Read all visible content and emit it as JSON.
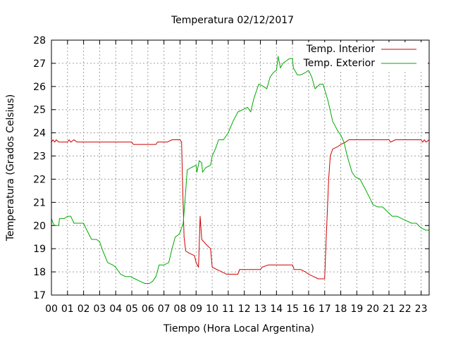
{
  "chart_data": {
    "type": "line",
    "title": "Temperatura 02/12/2017",
    "xlabel": "Tiempo (Hora Local Argentina)",
    "ylabel": "Temperatura (Grados Celsius)",
    "xlim": [
      0,
      23.5
    ],
    "ylim": [
      17,
      28
    ],
    "x_ticks": [
      {
        "value": 0,
        "label": "00"
      },
      {
        "value": 1,
        "label": "01"
      },
      {
        "value": 2,
        "label": "02"
      },
      {
        "value": 3,
        "label": "03"
      },
      {
        "value": 4,
        "label": "04"
      },
      {
        "value": 5,
        "label": "05"
      },
      {
        "value": 6,
        "label": "06"
      },
      {
        "value": 7,
        "label": "07"
      },
      {
        "value": 8,
        "label": "08"
      },
      {
        "value": 9,
        "label": "09"
      },
      {
        "value": 10,
        "label": "10"
      },
      {
        "value": 11,
        "label": "11"
      },
      {
        "value": 12,
        "label": "12"
      },
      {
        "value": 13,
        "label": "13"
      },
      {
        "value": 14,
        "label": "14"
      },
      {
        "value": 15,
        "label": "15"
      },
      {
        "value": 16,
        "label": "16"
      },
      {
        "value": 17,
        "label": "17"
      },
      {
        "value": 18,
        "label": "18"
      },
      {
        "value": 19,
        "label": "19"
      },
      {
        "value": 20,
        "label": "20"
      },
      {
        "value": 21,
        "label": "21"
      },
      {
        "value": 22,
        "label": "22"
      },
      {
        "value": 23,
        "label": "23"
      }
    ],
    "y_ticks": [
      {
        "value": 17,
        "label": "17"
      },
      {
        "value": 18,
        "label": "18"
      },
      {
        "value": 19,
        "label": "19"
      },
      {
        "value": 20,
        "label": "20"
      },
      {
        "value": 21,
        "label": "21"
      },
      {
        "value": 22,
        "label": "22"
      },
      {
        "value": 23,
        "label": "23"
      },
      {
        "value": 24,
        "label": "24"
      },
      {
        "value": 25,
        "label": "25"
      },
      {
        "value": 26,
        "label": "26"
      },
      {
        "value": 27,
        "label": "27"
      },
      {
        "value": 28,
        "label": "28"
      }
    ],
    "grid": true,
    "legend_position": "top-right",
    "series": [
      {
        "name": "Temp. Interior",
        "color": "#cc0000",
        "points": [
          [
            0,
            23.6
          ],
          [
            0.1,
            23.7
          ],
          [
            0.2,
            23.6
          ],
          [
            0.3,
            23.7
          ],
          [
            0.45,
            23.6
          ],
          [
            1.0,
            23.6
          ],
          [
            1.1,
            23.7
          ],
          [
            1.2,
            23.6
          ],
          [
            1.4,
            23.7
          ],
          [
            1.6,
            23.6
          ],
          [
            2.5,
            23.6
          ],
          [
            3.5,
            23.6
          ],
          [
            4.5,
            23.6
          ],
          [
            5.0,
            23.6
          ],
          [
            5.1,
            23.5
          ],
          [
            6.0,
            23.5
          ],
          [
            6.5,
            23.5
          ],
          [
            6.6,
            23.6
          ],
          [
            7.2,
            23.6
          ],
          [
            7.5,
            23.7
          ],
          [
            8.0,
            23.7
          ],
          [
            8.1,
            23.6
          ],
          [
            8.15,
            22.0
          ],
          [
            8.25,
            19.5
          ],
          [
            8.35,
            18.9
          ],
          [
            8.6,
            18.8
          ],
          [
            8.9,
            18.7
          ],
          [
            9.0,
            18.4
          ],
          [
            9.15,
            18.2
          ],
          [
            9.25,
            20.4
          ],
          [
            9.35,
            19.4
          ],
          [
            9.6,
            19.2
          ],
          [
            9.9,
            19.0
          ],
          [
            10.0,
            18.2
          ],
          [
            10.3,
            18.1
          ],
          [
            10.6,
            18.0
          ],
          [
            10.9,
            17.9
          ],
          [
            11.3,
            17.9
          ],
          [
            11.6,
            17.9
          ],
          [
            11.7,
            18.1
          ],
          [
            12.0,
            18.1
          ],
          [
            12.5,
            18.1
          ],
          [
            13.0,
            18.1
          ],
          [
            13.1,
            18.2
          ],
          [
            13.5,
            18.3
          ],
          [
            14.5,
            18.3
          ],
          [
            15.0,
            18.3
          ],
          [
            15.1,
            18.1
          ],
          [
            15.5,
            18.1
          ],
          [
            15.8,
            18.0
          ],
          [
            16.0,
            17.9
          ],
          [
            16.3,
            17.8
          ],
          [
            16.6,
            17.7
          ],
          [
            16.9,
            17.7
          ],
          [
            17.0,
            17.7
          ],
          [
            17.1,
            19.5
          ],
          [
            17.25,
            22.0
          ],
          [
            17.35,
            23.0
          ],
          [
            17.5,
            23.3
          ],
          [
            17.8,
            23.4
          ],
          [
            18.0,
            23.5
          ],
          [
            18.3,
            23.6
          ],
          [
            18.5,
            23.7
          ],
          [
            19.5,
            23.7
          ],
          [
            20.5,
            23.7
          ],
          [
            21.0,
            23.7
          ],
          [
            21.1,
            23.6
          ],
          [
            21.4,
            23.7
          ],
          [
            22.5,
            23.7
          ],
          [
            23.0,
            23.7
          ],
          [
            23.1,
            23.6
          ],
          [
            23.2,
            23.7
          ],
          [
            23.3,
            23.6
          ],
          [
            23.5,
            23.7
          ]
        ]
      },
      {
        "name": "Temp. Exterior",
        "color": "#00aa00",
        "points": [
          [
            0,
            20.3
          ],
          [
            0.1,
            20.1
          ],
          [
            0.2,
            20.0
          ],
          [
            0.45,
            20.0
          ],
          [
            0.5,
            20.3
          ],
          [
            0.8,
            20.3
          ],
          [
            1.0,
            20.4
          ],
          [
            1.2,
            20.4
          ],
          [
            1.4,
            20.1
          ],
          [
            1.8,
            20.1
          ],
          [
            2.0,
            20.1
          ],
          [
            2.2,
            19.8
          ],
          [
            2.5,
            19.4
          ],
          [
            2.8,
            19.4
          ],
          [
            3.0,
            19.3
          ],
          [
            3.2,
            18.9
          ],
          [
            3.5,
            18.4
          ],
          [
            3.8,
            18.3
          ],
          [
            4.0,
            18.2
          ],
          [
            4.3,
            17.9
          ],
          [
            4.6,
            17.8
          ],
          [
            4.9,
            17.8
          ],
          [
            5.2,
            17.7
          ],
          [
            5.5,
            17.6
          ],
          [
            5.8,
            17.5
          ],
          [
            6.1,
            17.5
          ],
          [
            6.3,
            17.6
          ],
          [
            6.5,
            17.8
          ],
          [
            6.7,
            18.3
          ],
          [
            7.0,
            18.3
          ],
          [
            7.3,
            18.4
          ],
          [
            7.5,
            19.0
          ],
          [
            7.7,
            19.5
          ],
          [
            7.9,
            19.6
          ],
          [
            8.0,
            19.7
          ],
          [
            8.1,
            19.9
          ],
          [
            8.2,
            20.1
          ],
          [
            8.3,
            21.0
          ],
          [
            8.45,
            22.4
          ],
          [
            8.7,
            22.5
          ],
          [
            9.0,
            22.6
          ],
          [
            9.05,
            22.3
          ],
          [
            9.2,
            22.8
          ],
          [
            9.35,
            22.7
          ],
          [
            9.4,
            22.3
          ],
          [
            9.6,
            22.5
          ],
          [
            9.9,
            22.6
          ],
          [
            10.0,
            23.0
          ],
          [
            10.2,
            23.3
          ],
          [
            10.4,
            23.7
          ],
          [
            10.7,
            23.7
          ],
          [
            11.0,
            24.0
          ],
          [
            11.3,
            24.5
          ],
          [
            11.6,
            24.9
          ],
          [
            11.9,
            25.0
          ],
          [
            12.2,
            25.1
          ],
          [
            12.4,
            24.9
          ],
          [
            12.6,
            25.5
          ],
          [
            12.9,
            26.1
          ],
          [
            13.2,
            26.0
          ],
          [
            13.4,
            25.9
          ],
          [
            13.6,
            26.4
          ],
          [
            13.8,
            26.6
          ],
          [
            14.0,
            26.7
          ],
          [
            14.1,
            27.3
          ],
          [
            14.25,
            26.8
          ],
          [
            14.4,
            27.0
          ],
          [
            14.6,
            27.1
          ],
          [
            14.8,
            27.2
          ],
          [
            15.0,
            27.2
          ],
          [
            15.05,
            26.8
          ],
          [
            15.3,
            26.5
          ],
          [
            15.5,
            26.5
          ],
          [
            15.8,
            26.6
          ],
          [
            16.0,
            26.7
          ],
          [
            16.2,
            26.4
          ],
          [
            16.4,
            25.9
          ],
          [
            16.7,
            26.1
          ],
          [
            16.9,
            26.1
          ],
          [
            17.2,
            25.4
          ],
          [
            17.5,
            24.5
          ],
          [
            17.8,
            24.1
          ],
          [
            18.0,
            23.9
          ],
          [
            18.2,
            23.6
          ],
          [
            18.4,
            23.0
          ],
          [
            18.7,
            22.3
          ],
          [
            18.9,
            22.1
          ],
          [
            19.2,
            22.0
          ],
          [
            19.5,
            21.6
          ],
          [
            19.8,
            21.2
          ],
          [
            20.0,
            20.9
          ],
          [
            20.3,
            20.8
          ],
          [
            20.6,
            20.8
          ],
          [
            20.9,
            20.6
          ],
          [
            21.2,
            20.4
          ],
          [
            21.5,
            20.4
          ],
          [
            21.8,
            20.3
          ],
          [
            22.1,
            20.2
          ],
          [
            22.4,
            20.1
          ],
          [
            22.7,
            20.1
          ],
          [
            23.0,
            19.9
          ],
          [
            23.3,
            19.8
          ],
          [
            23.5,
            19.8
          ]
        ]
      }
    ]
  }
}
